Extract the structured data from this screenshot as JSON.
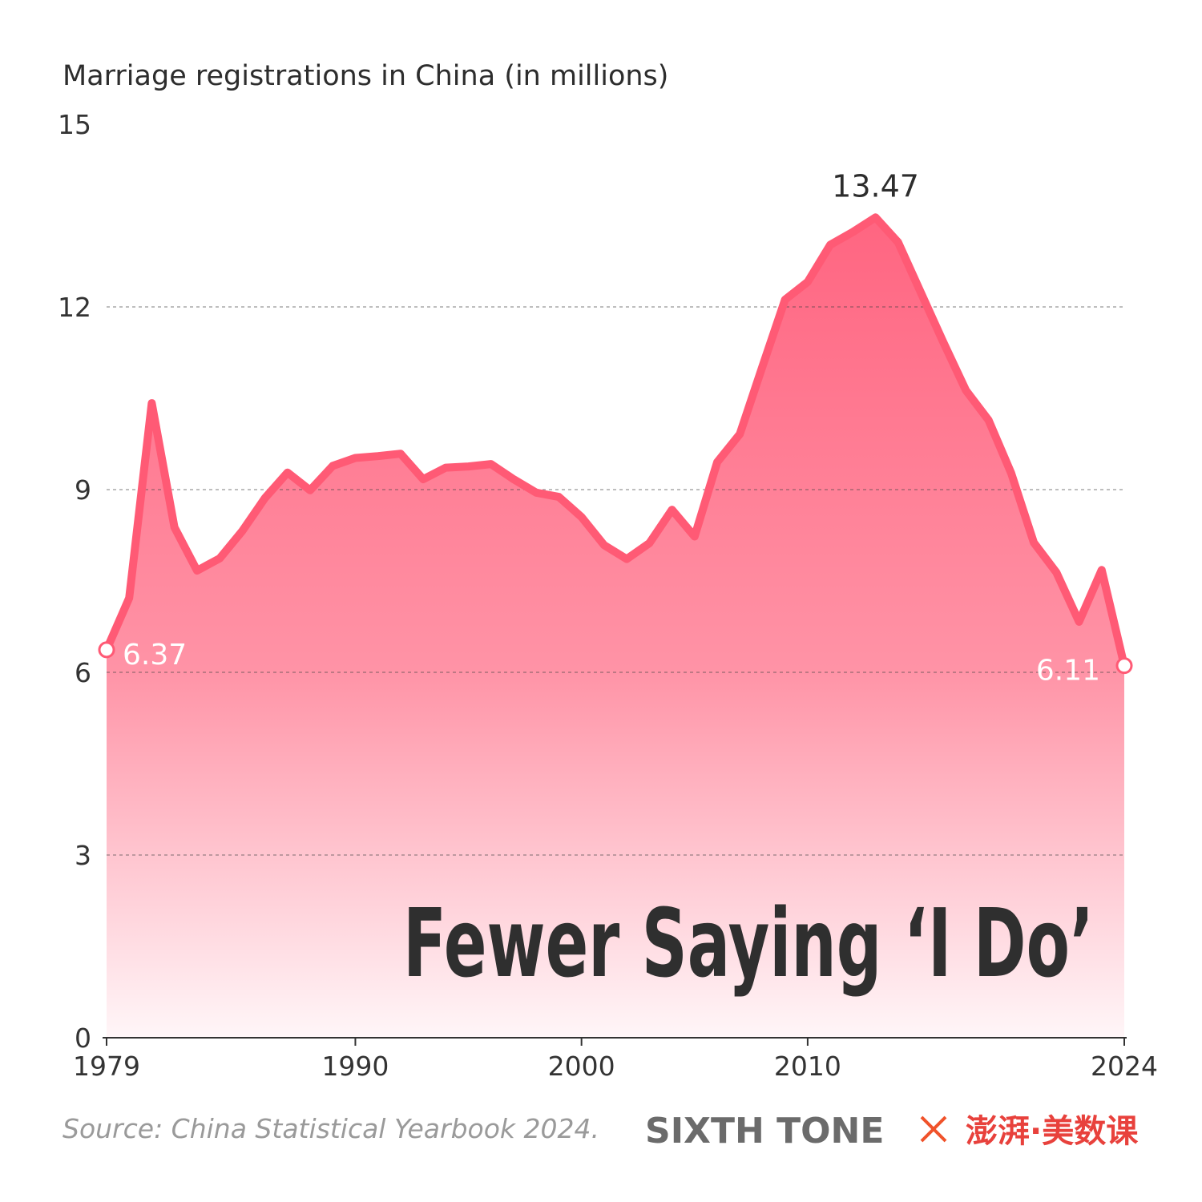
{
  "chart_data": {
    "type": "area",
    "title": "Marriage registrations in China (in millions)",
    "headline": "Fewer Saying ‘I Do’",
    "source": "Source: China Statistical Yearbook 2024.",
    "credits": [
      "SIXTH TONE",
      "澎湃·美数课"
    ],
    "x": [
      1979,
      1980,
      1981,
      1982,
      1983,
      1984,
      1985,
      1986,
      1987,
      1988,
      1989,
      1990,
      1991,
      1992,
      1993,
      1994,
      1995,
      1996,
      1997,
      1998,
      1999,
      2000,
      2001,
      2002,
      2003,
      2004,
      2005,
      2006,
      2007,
      2008,
      2009,
      2010,
      2011,
      2012,
      2013,
      2014,
      2015,
      2016,
      2017,
      2018,
      2019,
      2020,
      2021,
      2022,
      2023,
      2024
    ],
    "values": [
      6.37,
      7.22,
      10.42,
      8.38,
      7.67,
      7.87,
      8.32,
      8.86,
      9.28,
      8.99,
      9.39,
      9.52,
      9.55,
      9.59,
      9.17,
      9.36,
      9.38,
      9.42,
      9.17,
      8.95,
      8.88,
      8.55,
      8.09,
      7.86,
      8.12,
      8.67,
      8.23,
      9.45,
      9.91,
      11.02,
      12.12,
      12.41,
      13.02,
      13.23,
      13.47,
      13.06,
      12.24,
      11.42,
      10.63,
      10.14,
      9.27,
      8.13,
      7.64,
      6.83,
      7.68,
      6.11
    ],
    "color": "#ff5a75",
    "xlim": [
      1979,
      2024
    ],
    "xticks": [
      1979,
      1990,
      2000,
      2010,
      2024
    ],
    "ylim": [
      0,
      15
    ],
    "yticks": [
      0,
      3,
      6,
      9,
      12,
      15
    ],
    "grid": true
  }
}
